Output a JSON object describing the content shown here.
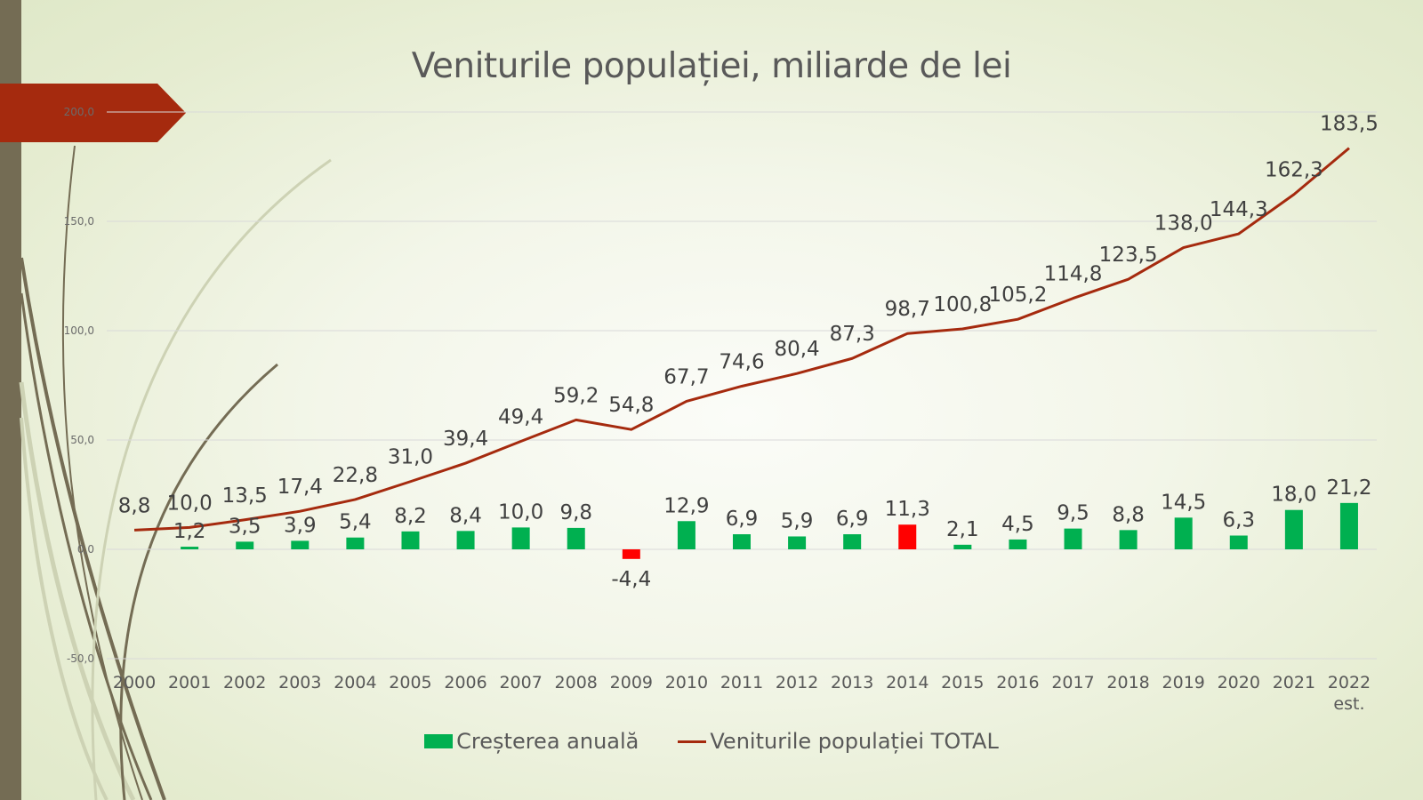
{
  "chart_data": {
    "type": "bar",
    "title": "Veniturile populației, miliarde de lei",
    "xlabel": "",
    "ylabel": "",
    "ylim": [
      -50,
      200
    ],
    "yticks": [
      -50,
      0,
      50,
      100,
      150,
      200
    ],
    "ytick_labels": [
      "-50,0",
      "0,0",
      "50,0",
      "100,0",
      "150,0",
      "200,0"
    ],
    "grid": true,
    "legend_position": "bottom",
    "categories": [
      "2000",
      "2001",
      "2002",
      "2003",
      "2004",
      "2005",
      "2006",
      "2007",
      "2008",
      "2009",
      "2010",
      "2011",
      "2012",
      "2013",
      "2014",
      "2015",
      "2016",
      "2017",
      "2018",
      "2019",
      "2020",
      "2021",
      "2022 est."
    ],
    "series": [
      {
        "name": "Creșterea anuală",
        "kind": "bar",
        "color": "#00b050",
        "highlight_color": "#ff0000",
        "highlight_indices": [
          9,
          14
        ],
        "values": [
          null,
          1.2,
          3.5,
          3.9,
          5.4,
          8.2,
          8.4,
          10.0,
          9.8,
          -4.4,
          12.9,
          6.9,
          5.9,
          6.9,
          11.3,
          2.1,
          4.5,
          9.5,
          8.8,
          14.5,
          6.3,
          18.0,
          21.2
        ],
        "labels": [
          "",
          "1,2",
          "3,5",
          "3,9",
          "5,4",
          "8,2",
          "8,4",
          "10,0",
          "9,8",
          "-4,4",
          "12,9",
          "6,9",
          "5,9",
          "6,9",
          "11,3",
          "2,1",
          "4,5",
          "9,5",
          "8,8",
          "14,5",
          "6,3",
          "18,0",
          "21,2"
        ]
      },
      {
        "name": "Veniturile populației TOTAL",
        "kind": "line",
        "color": "#a52a0e",
        "values": [
          8.8,
          10.0,
          13.5,
          17.4,
          22.8,
          31.0,
          39.4,
          49.4,
          59.2,
          54.8,
          67.7,
          74.6,
          80.4,
          87.3,
          98.7,
          100.8,
          105.2,
          114.8,
          123.5,
          138.0,
          144.3,
          162.3,
          183.5
        ],
        "labels": [
          "8,8",
          "10,0",
          "13,5",
          "17,4",
          "22,8",
          "31,0",
          "39,4",
          "49,4",
          "59,2",
          "54,8",
          "67,7",
          "74,6",
          "80,4",
          "87,3",
          "98,7",
          "100,8",
          "105,2",
          "114,8",
          "123,5",
          "138,0",
          "144,3",
          "162,3",
          "183,5"
        ]
      }
    ]
  },
  "legend": {
    "items": [
      {
        "label": "Creșterea anuală",
        "swatch": "bar"
      },
      {
        "label": "Veniturile populației TOTAL",
        "swatch": "line"
      }
    ]
  }
}
